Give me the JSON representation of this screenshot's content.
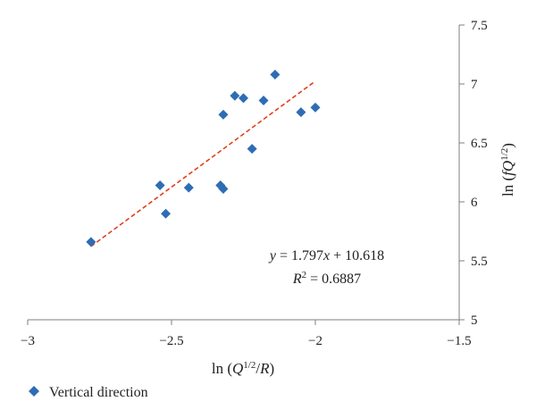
{
  "chart_data": {
    "type": "scatter",
    "xlim": [
      -3,
      -1.5
    ],
    "ylim": [
      5,
      7.5
    ],
    "x_ticks": [
      "−3",
      "−2.5",
      "−2",
      "−1.5"
    ],
    "y_ticks": [
      "5",
      "5.5",
      "6",
      "6.5",
      "7",
      "7.5"
    ],
    "xlabel": "ln (Q^{1/2}/R)",
    "ylabel": "ln (fQ^{1/2})",
    "y_axis_position": "right",
    "series": [
      {
        "name": "Vertical direction",
        "color": "#2e6db4",
        "marker": "diamond",
        "points": [
          {
            "x": -2.78,
            "y": 5.66
          },
          {
            "x": -2.54,
            "y": 6.14
          },
          {
            "x": -2.52,
            "y": 5.9
          },
          {
            "x": -2.44,
            "y": 6.12
          },
          {
            "x": -2.33,
            "y": 6.14
          },
          {
            "x": -2.32,
            "y": 6.11
          },
          {
            "x": -2.32,
            "y": 6.74
          },
          {
            "x": -2.28,
            "y": 6.9
          },
          {
            "x": -2.25,
            "y": 6.88
          },
          {
            "x": -2.22,
            "y": 6.45
          },
          {
            "x": -2.18,
            "y": 6.86
          },
          {
            "x": -2.14,
            "y": 7.08
          },
          {
            "x": -2.05,
            "y": 6.76
          },
          {
            "x": -2.0,
            "y": 6.8
          }
        ]
      }
    ],
    "trendline": {
      "slope": 1.797,
      "intercept": 10.618,
      "x_range": [
        -2.78,
        -2.0
      ],
      "color": "#e0401c",
      "style": "dashed"
    },
    "annotations": {
      "equation": "y = 1.797x + 10.618",
      "r_squared": "R² = 0.6887"
    },
    "legend_position": "bottom-left"
  }
}
